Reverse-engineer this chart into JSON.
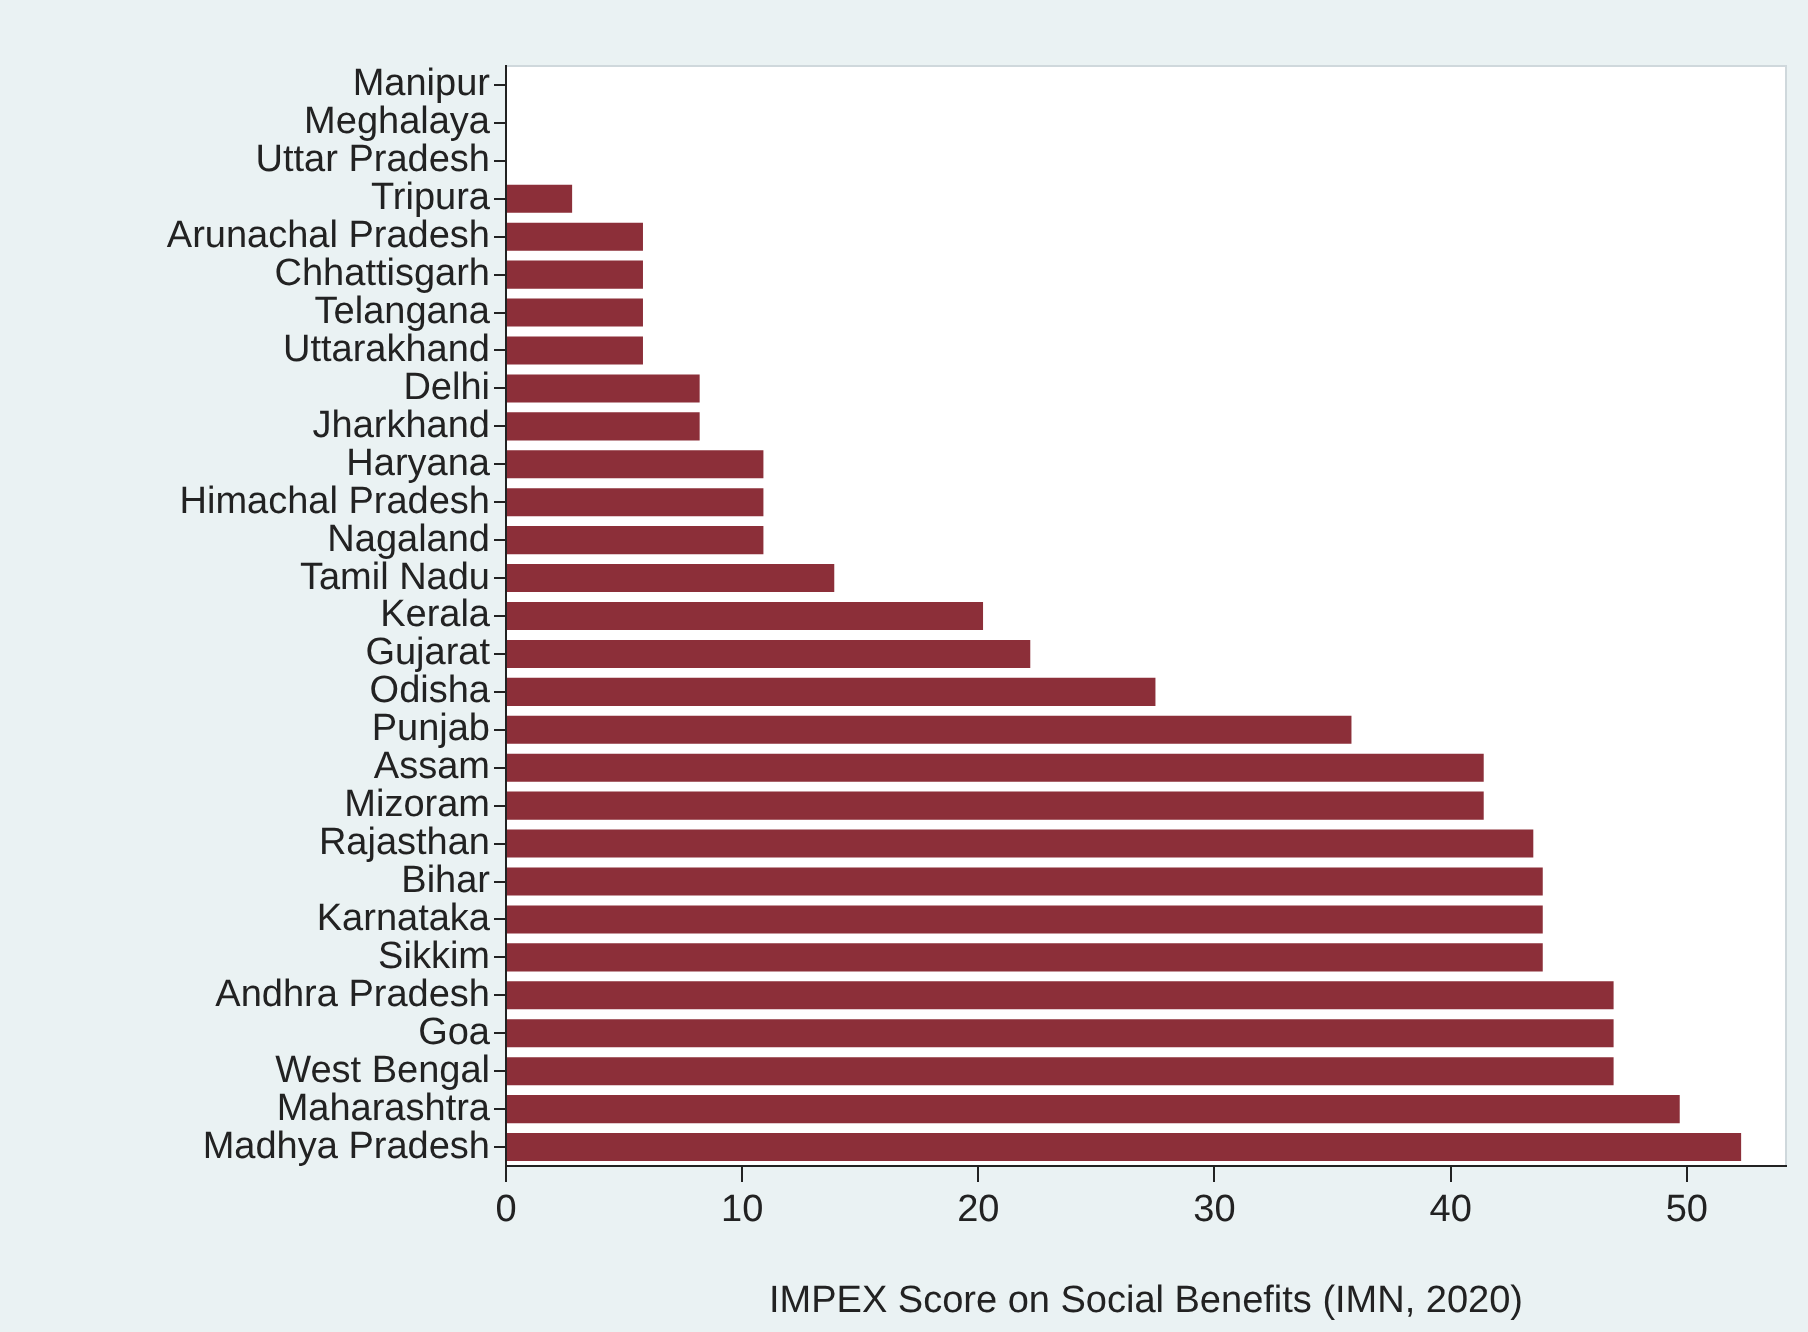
{
  "chart_data": {
    "type": "bar",
    "orientation": "horizontal",
    "xlabel": "IMPEX Score on Social Benefits (IMN, 2020)",
    "categories": [
      "Manipur",
      "Meghalaya",
      "Uttar Pradesh",
      "Tripura",
      "Arunachal Pradesh",
      "Chhattisgarh",
      "Telangana",
      "Uttarakhand",
      "Delhi",
      "Jharkhand",
      "Haryana",
      "Himachal Pradesh",
      "Nagaland",
      "Tamil Nadu",
      "Kerala",
      "Gujarat",
      "Odisha",
      "Punjab",
      "Assam",
      "Mizoram",
      "Rajasthan",
      "Bihar",
      "Karnataka",
      "Sikkim",
      "Andhra Pradesh",
      "Goa",
      "West Bengal",
      "Maharashtra",
      "Madhya Pradesh"
    ],
    "values": [
      0,
      0,
      0,
      2.8,
      5.8,
      5.8,
      5.8,
      5.8,
      8.2,
      8.2,
      10.9,
      10.9,
      10.9,
      13.9,
      20.2,
      22.2,
      27.5,
      35.8,
      41.4,
      41.4,
      43.5,
      43.9,
      43.9,
      43.9,
      46.9,
      46.9,
      46.9,
      49.7,
      52.3
    ],
    "color": "#8c2f39",
    "xlim": [
      0,
      54.2
    ],
    "xticks": [
      0,
      10,
      20,
      30,
      40,
      50
    ]
  }
}
